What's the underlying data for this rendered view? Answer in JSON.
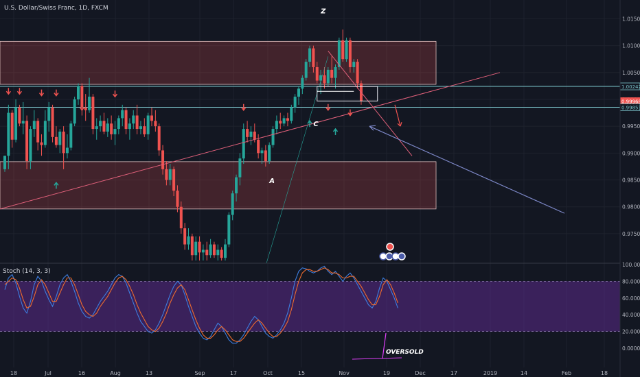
{
  "colors": {
    "background": "#131722",
    "up": "#26a69a",
    "down": "#ef5350",
    "zone_fill": "#ef5350",
    "zone_border": "#e0c0c0",
    "hline": "#7ec8cf",
    "trendline": "#e0607a",
    "arrow_line": "#7d88c8",
    "k_line": "#3d7ee0",
    "d_line": "#ef6c2e",
    "stoch_band": "#5b2a8a",
    "axis_text": "#b2b5be"
  },
  "chart_data": [
    {
      "type": "candlestick",
      "title": "U.S. Dollar/Swiss Franc, 1D, FXCM",
      "ylim": [
        0.9695,
        1.0185
      ],
      "y_ticks": [
        "1.01500",
        "1.01000",
        "1.00500",
        "1.00000",
        "0.99500",
        "0.99000",
        "0.98500",
        "0.98000",
        "0.97500"
      ],
      "x_ticks": [
        "18",
        "Jul",
        "16",
        "Aug",
        "13",
        "Sep",
        "17",
        "Oct",
        "15",
        "Nov",
        "19",
        "Dec",
        "17",
        "2019",
        "14",
        "Feb",
        "18"
      ],
      "price_labels": [
        {
          "text": "1.00242",
          "value": 1.00242,
          "style": "hline"
        },
        {
          "text": "0.99968",
          "value": 0.99968,
          "style": "down"
        },
        {
          "text": "0.99853",
          "value": 0.99853,
          "style": "hline"
        }
      ],
      "candles": [
        [
          0.987,
          0.9895,
          0.9865,
          0.9895
        ],
        [
          0.9895,
          0.999,
          0.987,
          0.9975
        ],
        [
          0.9975,
          0.998,
          0.991,
          0.9925
        ],
        [
          0.9925,
          1.0,
          0.992,
          0.9985
        ],
        [
          0.9985,
          0.999,
          0.995,
          0.9955
        ],
        [
          0.9955,
          0.9995,
          0.9935,
          0.996
        ],
        [
          0.996,
          0.997,
          0.987,
          0.9885
        ],
        [
          0.9885,
          0.995,
          0.987,
          0.9945
        ],
        [
          0.9945,
          0.998,
          0.993,
          0.996
        ],
        [
          0.996,
          0.9965,
          0.9905,
          0.992
        ],
        [
          0.992,
          0.9935,
          0.9895,
          0.9915
        ],
        [
          0.9915,
          0.998,
          0.991,
          0.996
        ],
        [
          0.996,
          0.9995,
          0.994,
          0.9985
        ],
        [
          0.9985,
          0.999,
          0.992,
          0.993
        ],
        [
          0.993,
          0.995,
          0.991,
          0.9915
        ],
        [
          0.9915,
          0.9945,
          0.99,
          0.994
        ],
        [
          0.994,
          0.995,
          0.987,
          0.99
        ],
        [
          0.99,
          0.9935,
          0.989,
          0.991
        ],
        [
          0.991,
          0.996,
          0.9905,
          0.9955
        ],
        [
          0.9955,
          1.0005,
          0.995,
          1.0
        ],
        [
          1.0,
          1.003,
          0.999,
          1.0025
        ],
        [
          1.0025,
          1.003,
          0.997,
          0.9985
        ],
        [
          0.9985,
          1.001,
          0.996,
          0.998
        ],
        [
          0.998,
          1.004,
          0.9975,
          1.0005
        ],
        [
          1.0005,
          1.001,
          0.9935,
          0.9945
        ],
        [
          0.9945,
          0.9965,
          0.9925,
          0.995
        ],
        [
          0.995,
          0.997,
          0.994,
          0.996
        ],
        [
          0.996,
          0.9975,
          0.9935,
          0.994
        ],
        [
          0.994,
          0.9965,
          0.993,
          0.9955
        ],
        [
          0.9955,
          0.997,
          0.9925,
          0.9935
        ],
        [
          0.9935,
          0.996,
          0.9915,
          0.9945
        ],
        [
          0.9945,
          0.997,
          0.9935,
          0.9965
        ],
        [
          0.9965,
          0.999,
          0.995,
          0.998
        ],
        [
          0.998,
          0.9985,
          0.9935,
          0.9945
        ],
        [
          0.9945,
          0.9965,
          0.9925,
          0.9955
        ],
        [
          0.9955,
          0.998,
          0.9945,
          0.997
        ],
        [
          0.997,
          0.999,
          0.9935,
          0.9945
        ],
        [
          0.9945,
          0.996,
          0.9935,
          0.995
        ],
        [
          0.995,
          0.9965,
          0.993,
          0.9935
        ],
        [
          0.9935,
          0.9975,
          0.9925,
          0.997
        ],
        [
          0.997,
          0.9985,
          0.995,
          0.996
        ],
        [
          0.996,
          0.998,
          0.994,
          0.995
        ],
        [
          0.995,
          0.9955,
          0.9895,
          0.9905
        ],
        [
          0.9905,
          0.9915,
          0.986,
          0.987
        ],
        [
          0.987,
          0.9885,
          0.984,
          0.985
        ],
        [
          0.985,
          0.988,
          0.984,
          0.987
        ],
        [
          0.987,
          0.9875,
          0.982,
          0.983
        ],
        [
          0.983,
          0.984,
          0.979,
          0.98
        ],
        [
          0.98,
          0.981,
          0.975,
          0.976
        ],
        [
          0.976,
          0.977,
          0.972,
          0.973
        ],
        [
          0.973,
          0.976,
          0.972,
          0.9745
        ],
        [
          0.9745,
          0.975,
          0.97,
          0.971
        ],
        [
          0.971,
          0.9745,
          0.97,
          0.9735
        ],
        [
          0.9735,
          0.9745,
          0.97,
          0.9715
        ],
        [
          0.9715,
          0.973,
          0.97,
          0.972
        ],
        [
          0.972,
          0.9735,
          0.97,
          0.971
        ],
        [
          0.971,
          0.974,
          0.9705,
          0.973
        ],
        [
          0.973,
          0.9735,
          0.9705,
          0.971
        ],
        [
          0.971,
          0.973,
          0.97,
          0.972
        ],
        [
          0.972,
          0.9725,
          0.97,
          0.9705
        ],
        [
          0.9705,
          0.974,
          0.97,
          0.973
        ],
        [
          0.973,
          0.979,
          0.9725,
          0.9785
        ],
        [
          0.9785,
          0.983,
          0.9775,
          0.9825
        ],
        [
          0.9825,
          0.986,
          0.981,
          0.9855
        ],
        [
          0.9855,
          0.99,
          0.984,
          0.989
        ],
        [
          0.989,
          0.9955,
          0.988,
          0.9945
        ],
        [
          0.9945,
          0.996,
          0.992,
          0.993
        ],
        [
          0.993,
          0.995,
          0.9915,
          0.994
        ],
        [
          0.994,
          0.9955,
          0.992,
          0.9925
        ],
        [
          0.9925,
          0.9935,
          0.989,
          0.99
        ],
        [
          0.99,
          0.991,
          0.988,
          0.9905
        ],
        [
          0.9905,
          0.9915,
          0.9875,
          0.9885
        ],
        [
          0.9885,
          0.992,
          0.988,
          0.9915
        ],
        [
          0.9915,
          0.995,
          0.991,
          0.9945
        ],
        [
          0.9945,
          0.997,
          0.9935,
          0.996
        ],
        [
          0.996,
          0.9975,
          0.9945,
          0.9955
        ],
        [
          0.9955,
          0.997,
          0.995,
          0.9965
        ],
        [
          0.9965,
          0.9975,
          0.995,
          0.996
        ],
        [
          0.996,
          0.999,
          0.9955,
          0.9985
        ],
        [
          0.9985,
          1.001,
          0.9975,
          1.0005
        ],
        [
          1.0005,
          1.0025,
          0.999,
          1.002
        ],
        [
          1.002,
          1.0045,
          1.001,
          1.004
        ],
        [
          1.004,
          1.0075,
          1.0035,
          1.007
        ],
        [
          1.007,
          1.01,
          1.006,
          1.0095
        ],
        [
          1.0095,
          1.01,
          1.005,
          1.006
        ],
        [
          1.006,
          1.007,
          1.003,
          1.0035
        ],
        [
          1.0035,
          1.0055,
          1.001,
          1.0045
        ],
        [
          1.0045,
          1.006,
          1.002,
          1.003
        ],
        [
          1.003,
          1.006,
          1.0025,
          1.0055
        ],
        [
          1.0055,
          1.008,
          1.003,
          1.004
        ],
        [
          1.004,
          1.0065,
          1.002,
          1.006
        ],
        [
          1.006,
          1.0115,
          1.0055,
          1.011
        ],
        [
          1.011,
          1.013,
          1.007,
          1.0075
        ],
        [
          1.0075,
          1.0115,
          1.007,
          1.011
        ],
        [
          1.011,
          1.0115,
          1.005,
          1.006
        ],
        [
          1.006,
          1.0075,
          1.005,
          1.007
        ],
        [
          1.007,
          1.0075,
          1.002,
          1.003
        ],
        [
          1.003,
          1.0035,
          0.999,
          0.9997
        ]
      ],
      "zones": [
        {
          "top": 1.0108,
          "bottom": 1.0028
        },
        {
          "top": 0.9884,
          "bottom": 0.9796
        }
      ],
      "horizontal_lines": [
        1.00242,
        0.99853
      ],
      "annotations": [
        {
          "text": "Z",
          "x": 86,
          "y": 1.016
        },
        {
          "text": "A",
          "x": 72,
          "y": 0.9844
        },
        {
          "text": "C",
          "x": 84,
          "y": 0.995
        }
      ],
      "signal_arrows": {
        "down": [
          [
            1,
            1.0015
          ],
          [
            4,
            1.0015
          ],
          [
            10,
            1.0012
          ],
          [
            14,
            1.0012
          ],
          [
            21,
            0.9985
          ],
          [
            30,
            1.001
          ],
          [
            65,
            0.9985
          ],
          [
            88,
            0.9985
          ],
          [
            94,
            0.9975
          ]
        ],
        "up": [
          [
            14,
            0.984
          ],
          [
            83,
            0.9955
          ],
          [
            90,
            0.994
          ]
        ]
      }
    },
    {
      "type": "line",
      "title": "Stoch (14, 3, 3)",
      "ylim": [
        0,
        100
      ],
      "y_ticks": [
        "100.0000",
        "80.0000",
        "60.0000",
        "40.0000",
        "20.0000",
        "0.0000"
      ],
      "band": [
        20,
        80
      ],
      "series": [
        {
          "values": [
            70,
            84,
            88,
            78,
            62,
            48,
            42,
            56,
            76,
            86,
            80,
            68,
            58,
            50,
            62,
            76,
            84,
            88,
            80,
            68,
            54,
            44,
            38,
            36,
            40,
            48,
            56,
            62,
            68,
            76,
            84,
            88,
            86,
            78,
            66,
            54,
            42,
            32,
            26,
            20,
            18,
            22,
            30,
            40,
            52,
            64,
            74,
            80,
            76,
            64,
            50,
            38,
            26,
            18,
            12,
            10,
            14,
            22,
            30,
            26,
            18,
            10,
            6,
            6,
            10,
            16,
            24,
            32,
            38,
            34,
            26,
            18,
            14,
            12,
            16,
            22,
            30,
            42,
            60,
            80,
            92,
            96,
            95,
            92,
            90,
            92,
            96,
            98,
            92,
            88,
            92,
            86,
            80,
            86,
            90,
            84,
            76,
            68,
            60,
            52,
            48,
            56,
            72,
            84,
            80,
            70,
            60,
            48
          ]
        },
        {
          "values": [
            76,
            80,
            84,
            82,
            72,
            58,
            48,
            50,
            62,
            76,
            82,
            76,
            66,
            56,
            56,
            66,
            76,
            84,
            84,
            76,
            64,
            52,
            44,
            40,
            38,
            42,
            50,
            56,
            62,
            70,
            78,
            84,
            86,
            82,
            74,
            64,
            52,
            42,
            34,
            26,
            22,
            20,
            24,
            32,
            42,
            54,
            64,
            72,
            76,
            70,
            58,
            46,
            34,
            24,
            16,
            12,
            12,
            16,
            22,
            26,
            22,
            16,
            10,
            8,
            8,
            12,
            18,
            24,
            30,
            34,
            30,
            24,
            18,
            14,
            14,
            18,
            24,
            32,
            46,
            64,
            80,
            90,
            94,
            94,
            92,
            92,
            94,
            96,
            94,
            90,
            90,
            88,
            84,
            84,
            86,
            86,
            80,
            74,
            66,
            58,
            52,
            52,
            62,
            76,
            82,
            76,
            66,
            54
          ]
        }
      ],
      "annotation": {
        "text": "OVERSOLD"
      }
    }
  ]
}
